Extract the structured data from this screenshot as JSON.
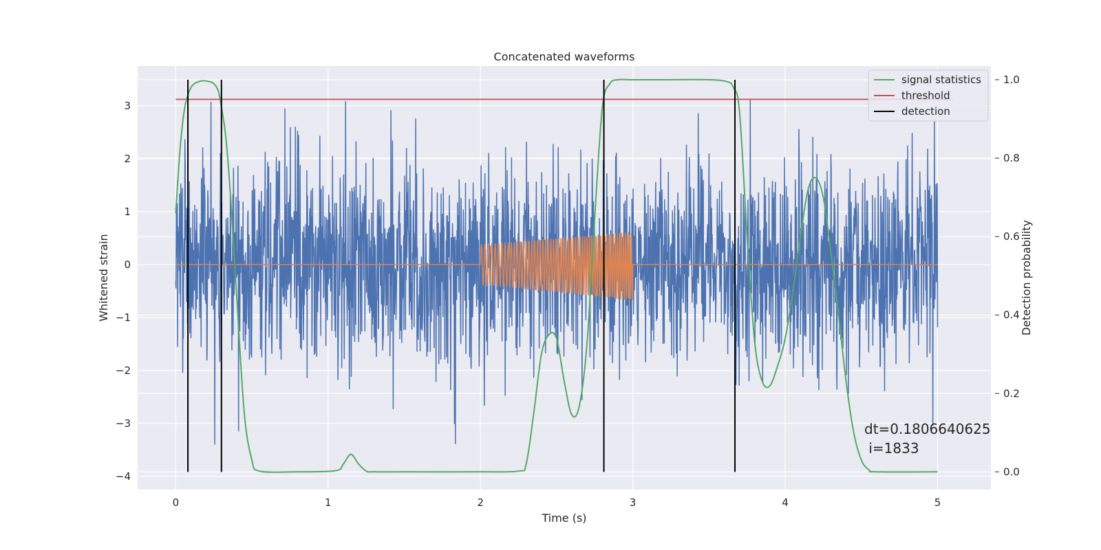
{
  "chart_data": {
    "type": "line",
    "title": "Concatenated waveforms",
    "xlabel": "Time (s)",
    "ylabel": "Whitened strain",
    "y2label": "Detection probability",
    "xlim": [
      -0.25,
      5.35
    ],
    "ylim": [
      -4.25,
      3.75
    ],
    "y2lim": [
      -0.045,
      1.035
    ],
    "x_ticks": [
      0,
      1,
      2,
      3,
      4,
      5
    ],
    "y_ticks": [
      -4,
      -3,
      -2,
      -1,
      0,
      1,
      2,
      3
    ],
    "y2_ticks": [
      0.0,
      0.2,
      0.4,
      0.6,
      0.8,
      1.0
    ],
    "grid": true,
    "legend": "top-right",
    "colors": {
      "noise": "#4c72b0",
      "waveform": "#dd8452",
      "signal_statistics": "#55a868",
      "threshold": "#c44e52",
      "detection": "#000000",
      "background": "#eaeaf2",
      "grid": "#ffffff"
    },
    "series": [
      {
        "name": "",
        "axis": "left",
        "kind": "noise",
        "x_range": [
          0,
          5
        ],
        "envelope_range": [
          -4,
          3.3
        ]
      },
      {
        "name": "",
        "axis": "left",
        "kind": "chirp",
        "x_range": [
          2,
          3
        ],
        "amplitude_start": 0.38,
        "amplitude_end": 0.65,
        "baseline": 0
      },
      {
        "name": "signal statistics",
        "axis": "right",
        "x": [
          0.0,
          0.03,
          0.06,
          0.1,
          0.15,
          0.2,
          0.25,
          0.28,
          0.3,
          0.33,
          0.36,
          0.4,
          0.45,
          0.5,
          0.55,
          0.8,
          1.05,
          1.1,
          1.15,
          1.2,
          1.25,
          1.3,
          1.5,
          2.0,
          2.25,
          2.3,
          2.35,
          2.4,
          2.45,
          2.5,
          2.55,
          2.6,
          2.65,
          2.7,
          2.75,
          2.8,
          2.85,
          2.9,
          3.0,
          3.2,
          3.5,
          3.62,
          3.66,
          3.7,
          3.75,
          3.8,
          3.85,
          3.9,
          3.95,
          4.0,
          4.05,
          4.1,
          4.15,
          4.2,
          4.25,
          4.3,
          4.35,
          4.4,
          4.45,
          4.5,
          4.55,
          4.6,
          5.0
        ],
        "y": [
          0.66,
          0.83,
          0.93,
          0.98,
          0.995,
          0.997,
          0.99,
          0.97,
          0.93,
          0.85,
          0.7,
          0.45,
          0.15,
          0.03,
          0.002,
          0.0,
          0.003,
          0.02,
          0.045,
          0.02,
          0.002,
          0.0,
          0.0,
          0.0,
          0.002,
          0.02,
          0.15,
          0.3,
          0.35,
          0.34,
          0.23,
          0.145,
          0.17,
          0.33,
          0.65,
          0.93,
          0.99,
          1.0,
          1.0,
          1.0,
          1.0,
          0.995,
          0.98,
          0.92,
          0.6,
          0.33,
          0.23,
          0.22,
          0.27,
          0.34,
          0.46,
          0.6,
          0.72,
          0.75,
          0.7,
          0.56,
          0.4,
          0.23,
          0.1,
          0.03,
          0.005,
          0.0,
          0.0
        ]
      },
      {
        "name": "threshold",
        "axis": "right",
        "x": [
          0,
          5.1
        ],
        "y": [
          0.95,
          0.95
        ]
      },
      {
        "name": "detection",
        "axis": "right",
        "x": [
          0.08,
          0.3,
          2.81,
          3.67
        ],
        "y_range": [
          0.0,
          1.0
        ]
      }
    ],
    "annotation": {
      "line1": "dt=0.1806640625",
      "line2": " i=1833"
    }
  }
}
